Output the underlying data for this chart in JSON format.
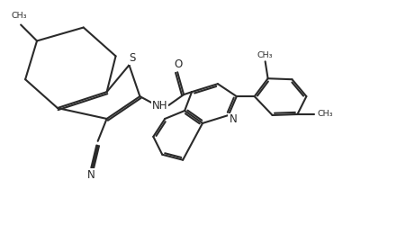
{
  "bg_color": "#ffffff",
  "line_color": "#2a2a2a",
  "line_width": 1.5,
  "font_size": 8.5,
  "label_S": "S",
  "label_NH": "NH",
  "label_N": "N",
  "label_O": "O",
  "label_CN": "N",
  "label_CH3": "CH₃"
}
